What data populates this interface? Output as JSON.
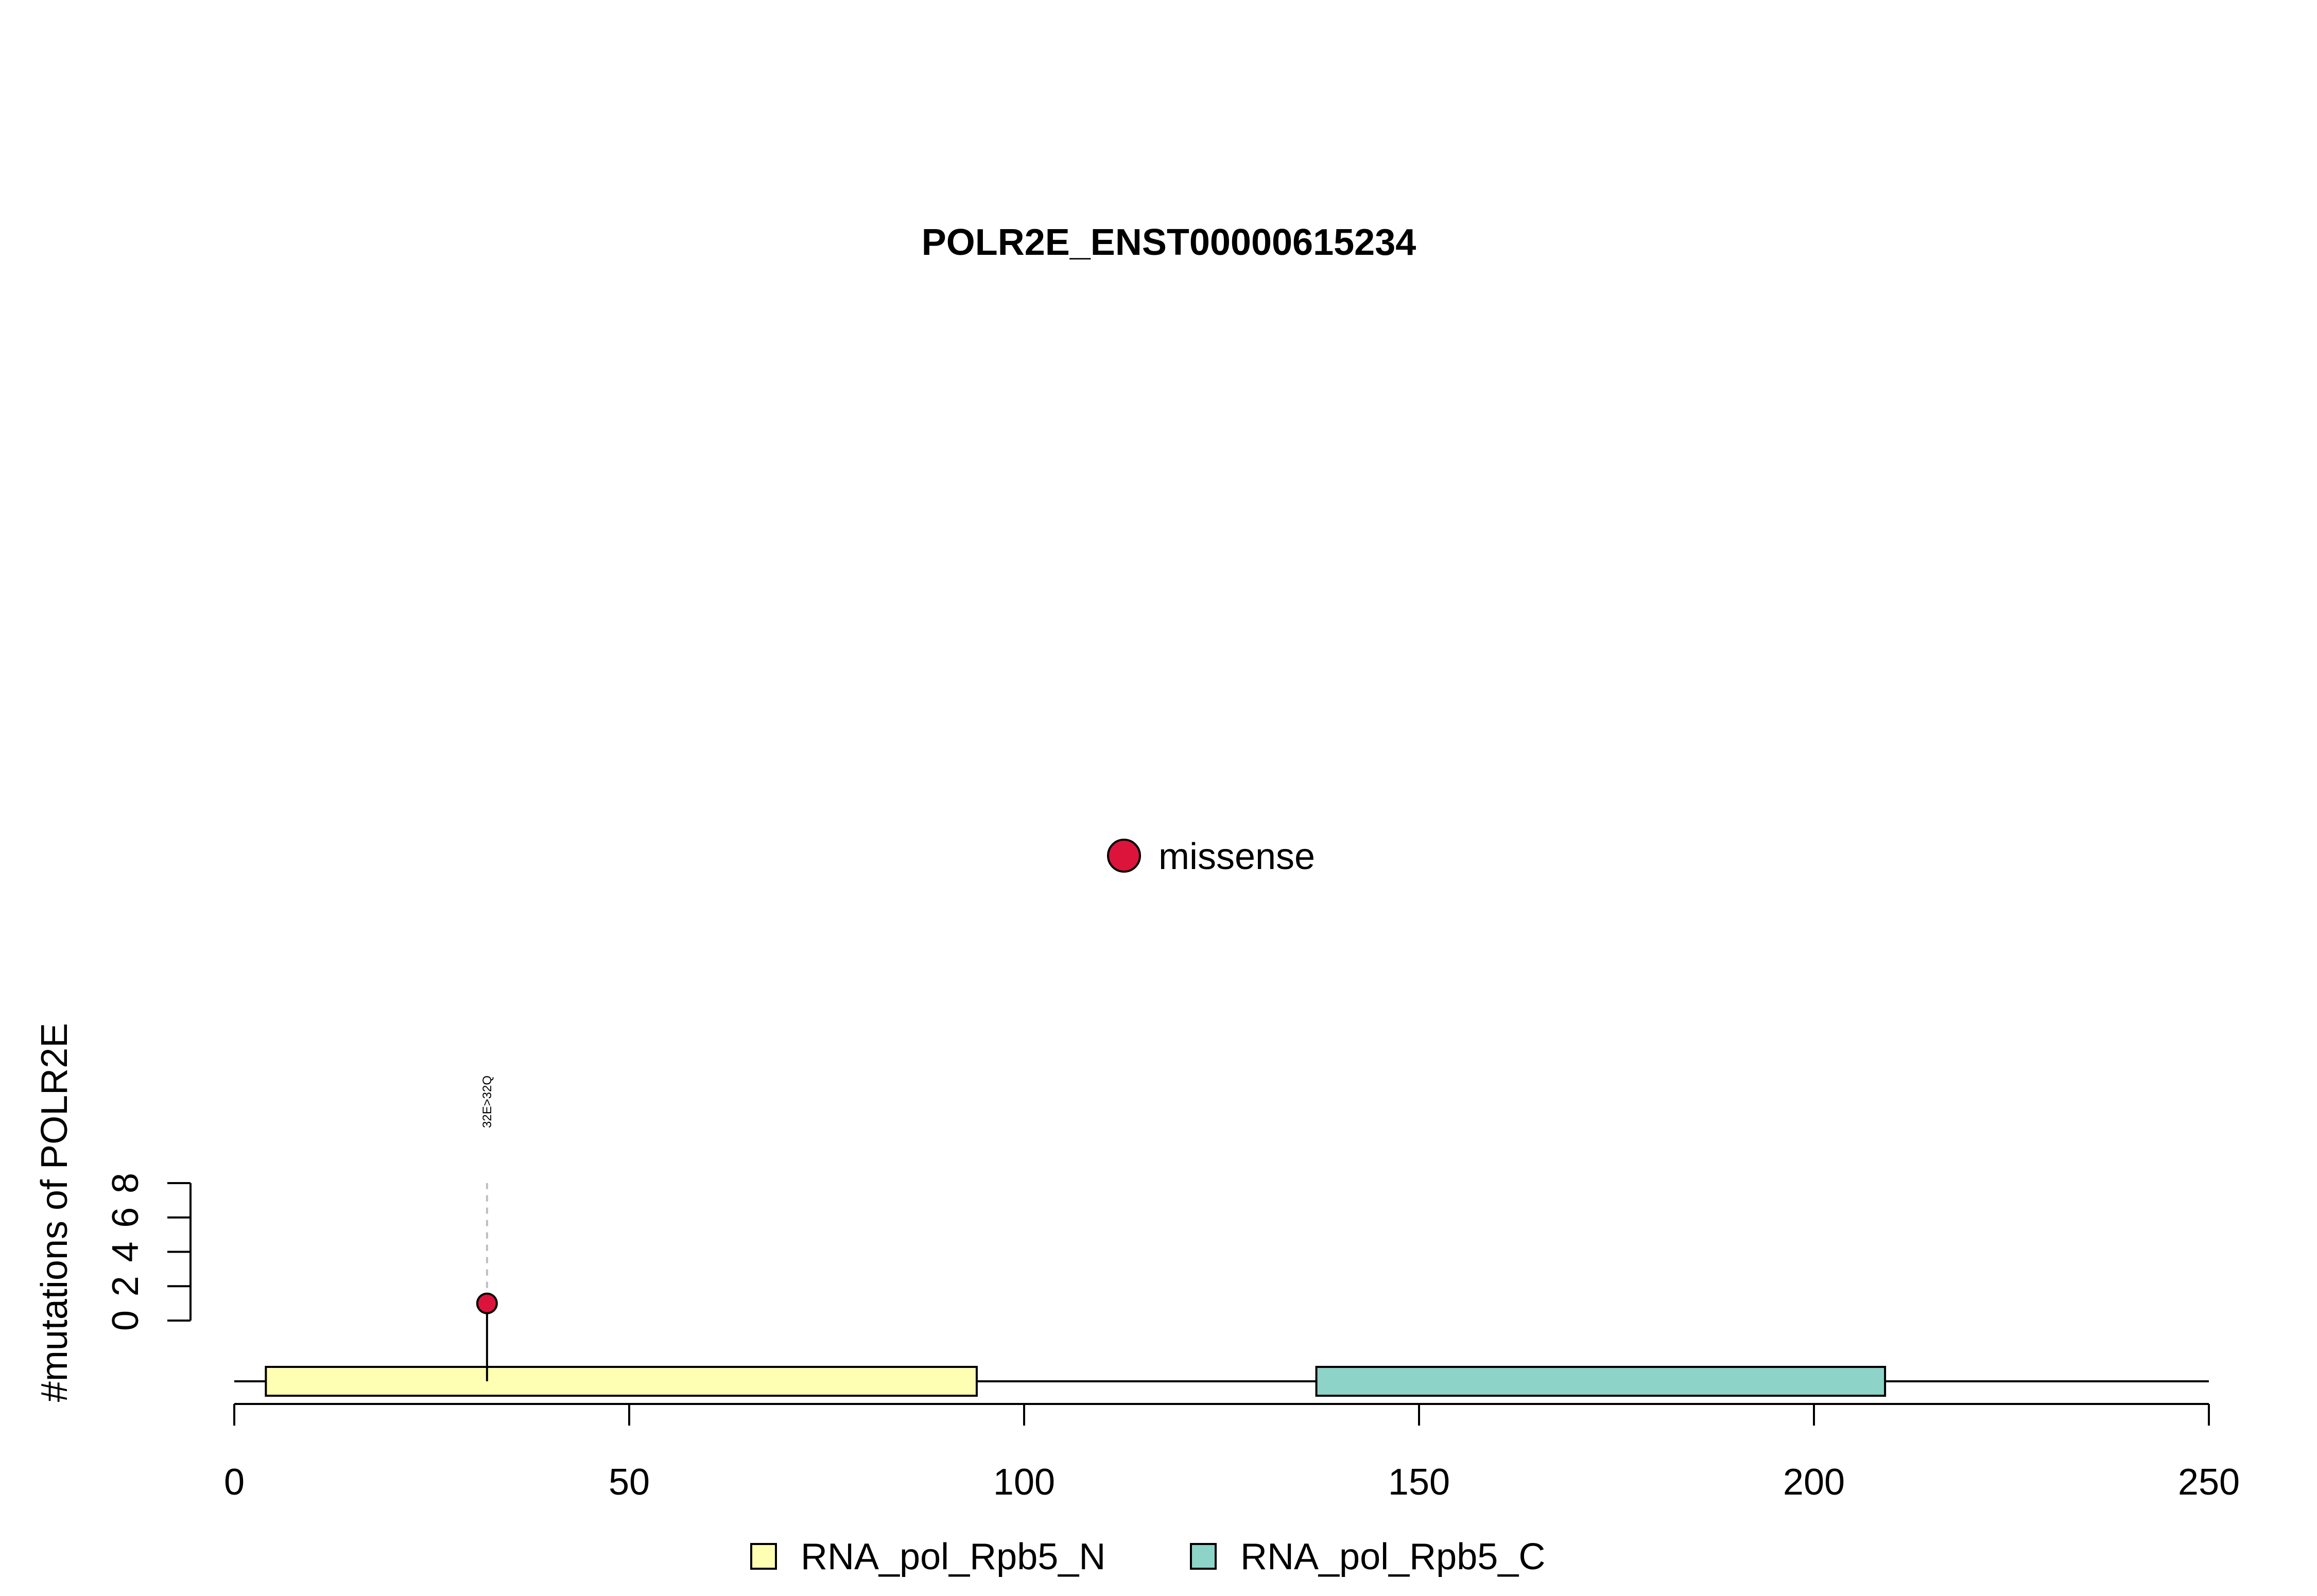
{
  "chart_data": {
    "type": "lollipop",
    "title": "POLR2E_ENST00000615234",
    "ylabel": "#mutations of POLR2E",
    "xlabel": "",
    "xlim": [
      0,
      250
    ],
    "x_ticks": [
      0,
      50,
      100,
      150,
      200,
      250
    ],
    "x_tick_labels": [
      "0",
      "50",
      "100",
      "150",
      "200",
      "250"
    ],
    "ylim": [
      0,
      8
    ],
    "y_ticks": [
      0,
      2,
      4,
      6,
      8
    ],
    "y_tick_labels": [
      "0",
      "2",
      "4",
      "6",
      "8"
    ],
    "protein_length": 250,
    "domains": [
      {
        "name": "RNA_pol_Rpb5_N",
        "start": 4,
        "end": 94,
        "color": "#FFFFB3"
      },
      {
        "name": "RNA_pol_Rpb5_C",
        "start": 137,
        "end": 209,
        "color": "#8DD3C7"
      }
    ],
    "mutations": [
      {
        "position": 32,
        "count": 1,
        "label": "32E>32Q",
        "type": "missense",
        "color": "#DC143C"
      }
    ],
    "mutation_legend": [
      {
        "label": "missense",
        "color": "#DC143C"
      }
    ],
    "domain_legend": [
      {
        "label": "RNA_pol_Rpb5_N",
        "color": "#FFFFB3"
      },
      {
        "label": "RNA_pol_Rpb5_C",
        "color": "#8DD3C7"
      }
    ],
    "grid": false
  }
}
